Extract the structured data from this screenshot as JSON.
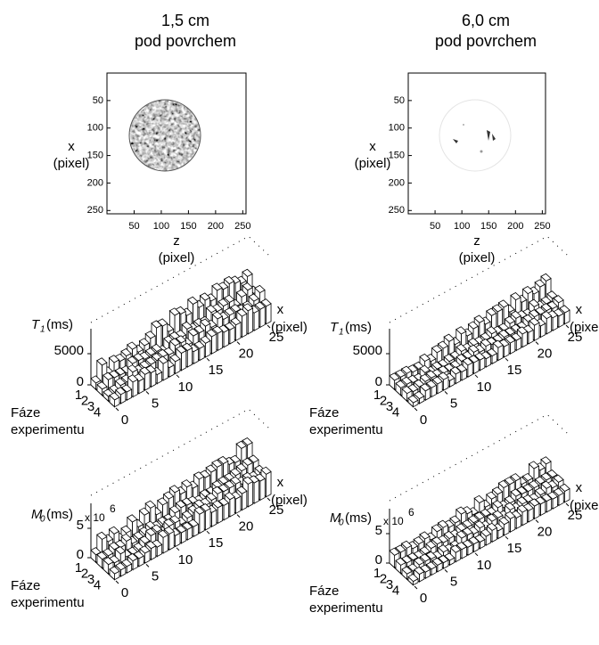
{
  "image_panels": [
    {
      "title": [
        "1,5 cm",
        "pod povrchem"
      ],
      "ylabel": [
        "x",
        "(pixel)"
      ],
      "xlabel": [
        "z",
        "(pixel)"
      ],
      "xlim": [
        0,
        256
      ],
      "ylim": [
        0,
        256
      ],
      "xticks": [
        50,
        100,
        150,
        200,
        250
      ],
      "yticks": [
        50,
        100,
        150,
        200,
        250
      ]
    },
    {
      "title": [
        "6,0 cm",
        "pod povrchem"
      ],
      "ylabel": [
        "x",
        "(pixel)"
      ],
      "xlabel": [
        "z",
        "(pixel)"
      ],
      "xlim": [
        0,
        256
      ],
      "ylim": [
        0,
        256
      ],
      "xticks": [
        50,
        100,
        150,
        200,
        250
      ],
      "yticks": [
        50,
        100,
        150,
        200,
        250
      ]
    }
  ],
  "bar_panels": [
    {
      "zlabel": {
        "symbol": "T",
        "subscript": "1",
        "unit": "(ms)"
      },
      "zticks": [
        0,
        5000
      ],
      "xticks": [
        0,
        5,
        10,
        15,
        20,
        25
      ],
      "phase_ticks": [
        1,
        2,
        3,
        4
      ],
      "xlabel": [
        "x",
        "(pixel)"
      ],
      "phase_label": [
        "Fáze",
        "experimentu"
      ]
    },
    {
      "zlabel": {
        "symbol": "T",
        "subscript": "1",
        "unit": "(ms)"
      },
      "zticks": [
        0,
        5000
      ],
      "xticks": [
        0,
        5,
        10,
        15,
        20,
        25
      ],
      "phase_ticks": [
        1,
        2,
        3,
        4
      ],
      "xlabel": [
        "x",
        "(pixel)"
      ],
      "phase_label": [
        "Fáze",
        "experimentu"
      ]
    },
    {
      "zlabel": {
        "symbol": "M",
        "subscript": "0",
        "unit": "(ms)"
      },
      "multiplier": {
        "base": "x 10",
        "exponent": "6"
      },
      "zticks": [
        0,
        5
      ],
      "xticks": [
        0,
        5,
        10,
        15,
        20,
        25
      ],
      "phase_ticks": [
        1,
        2,
        3,
        4
      ],
      "xlabel": [
        "x",
        "(pixel)"
      ],
      "phase_label": [
        "Fáze",
        "experimentu"
      ]
    },
    {
      "zlabel": {
        "symbol": "M",
        "subscript": "0",
        "unit": "(ms)"
      },
      "multiplier": {
        "base": "x 10",
        "exponent": "6"
      },
      "zticks": [
        0,
        5
      ],
      "xticks": [
        0,
        5,
        10,
        15,
        20,
        25
      ],
      "phase_ticks": [
        1,
        2,
        3,
        4
      ],
      "xlabel": [
        "x",
        "(pixel)"
      ],
      "phase_label": [
        "Fáze",
        "experimentu"
      ]
    }
  ]
}
